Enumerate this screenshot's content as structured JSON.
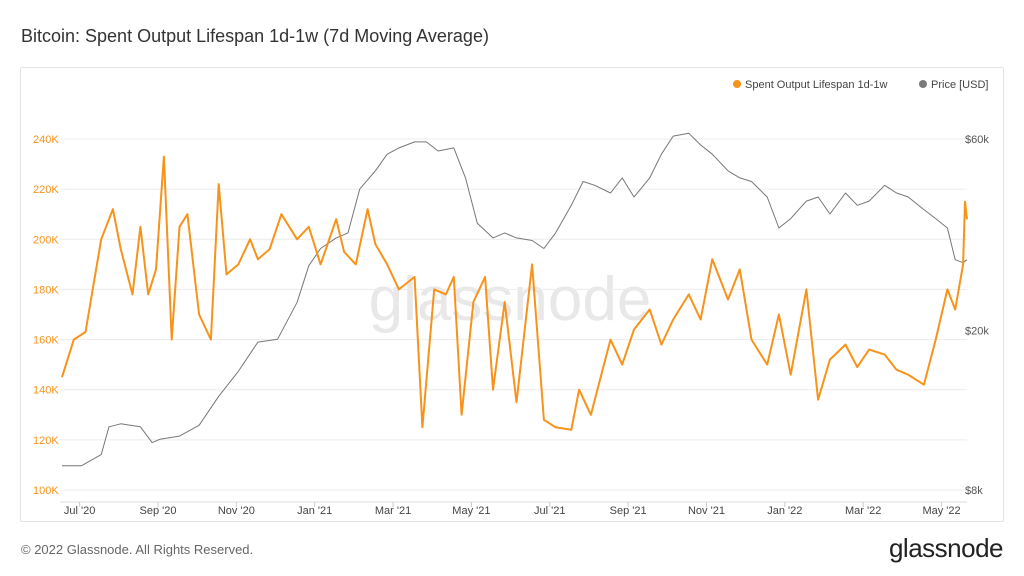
{
  "title": "Bitcoin: Spent Output Lifespan 1d-1w (7d Moving Average)",
  "footer": "© 2022 Glassnode. All Rights Reserved.",
  "brand": "glassnode",
  "watermark": "glassnode",
  "colors": {
    "spent": "#f7931a",
    "price": "#777777",
    "grid": "#ececec",
    "legend_price": "#7a7a7a"
  },
  "legend": [
    {
      "label": "Spent Output Lifespan 1d-1w",
      "color": "#f7931a"
    },
    {
      "label": "Price [USD]",
      "color": "#7a7a7a"
    }
  ],
  "chart_data": {
    "type": "line",
    "title": "Bitcoin: Spent Output Lifespan 1d-1w (7d Moving Average)",
    "x_range": [
      "2020-06-18",
      "2022-05-20"
    ],
    "x_ticks": [
      {
        "label": "Jul '20",
        "month": 0.45
      },
      {
        "label": "Sep '20",
        "month": 2.45
      },
      {
        "label": "Nov '20",
        "month": 4.45
      },
      {
        "label": "Jan '21",
        "month": 6.45
      },
      {
        "label": "Mar '21",
        "month": 8.45
      },
      {
        "label": "May '21",
        "month": 10.45
      },
      {
        "label": "Jul '21",
        "month": 12.45
      },
      {
        "label": "Sep '21",
        "month": 14.45
      },
      {
        "label": "Nov '21",
        "month": 16.45
      },
      {
        "label": "Jan '22",
        "month": 18.45
      },
      {
        "label": "Mar '22",
        "month": 20.45
      },
      {
        "label": "May '22",
        "month": 22.45
      }
    ],
    "y_left": {
      "min": 100000,
      "max": 240000,
      "ticks": [
        "100K",
        "120K",
        "140K",
        "160K",
        "180K",
        "200K",
        "220K",
        "240K"
      ],
      "tick_values": [
        100000,
        120000,
        140000,
        160000,
        180000,
        200000,
        220000,
        240000
      ]
    },
    "y_right": {
      "scale": "log",
      "min": 8000,
      "max": 60000,
      "ticks": [
        "$8k",
        "$20k",
        "$60k"
      ],
      "tick_values": [
        8000,
        20000,
        60000
      ]
    },
    "series": [
      {
        "name": "Spent Output Lifespan 1d-1w",
        "axis": "left",
        "x_month": [
          0,
          0.3,
          0.6,
          1,
          1.3,
          1.5,
          1.8,
          2,
          2.2,
          2.4,
          2.6,
          2.8,
          3,
          3.2,
          3.5,
          3.8,
          4,
          4.2,
          4.5,
          4.8,
          5,
          5.3,
          5.6,
          6,
          6.3,
          6.6,
          7,
          7.2,
          7.5,
          7.8,
          8,
          8.3,
          8.6,
          9,
          9.2,
          9.5,
          9.8,
          10,
          10.2,
          10.5,
          10.8,
          11,
          11.3,
          11.6,
          12,
          12.3,
          12.6,
          13,
          13.2,
          13.5,
          13.8,
          14,
          14.3,
          14.6,
          15,
          15.3,
          15.6,
          16,
          16.3,
          16.6,
          17,
          17.3,
          17.6,
          18,
          18.3,
          18.6,
          19,
          19.3,
          19.6,
          20,
          20.3,
          20.6,
          21,
          21.3,
          21.6,
          22,
          22.3,
          22.6,
          22.8,
          23,
          23.05,
          23.1
        ],
        "values": [
          145000,
          160000,
          163000,
          200000,
          212000,
          196000,
          178000,
          205000,
          178000,
          188000,
          233000,
          160000,
          205000,
          210000,
          170000,
          160000,
          222000,
          186000,
          190000,
          200000,
          192000,
          196000,
          210000,
          200000,
          205000,
          190000,
          208000,
          195000,
          190000,
          212000,
          198000,
          190000,
          180000,
          185000,
          125000,
          180000,
          178000,
          185000,
          130000,
          175000,
          185000,
          140000,
          175000,
          135000,
          190000,
          128000,
          125000,
          124000,
          140000,
          130000,
          148000,
          160000,
          150000,
          164000,
          172000,
          158000,
          168000,
          178000,
          168000,
          192000,
          176000,
          188000,
          160000,
          150000,
          170000,
          146000,
          180000,
          136000,
          152000,
          158000,
          149000,
          156000,
          154000,
          148000,
          146000,
          142000,
          160000,
          180000,
          172000,
          190000,
          215000,
          208000
        ]
      },
      {
        "name": "Price [USD]",
        "axis": "right",
        "x_month": [
          0,
          0.5,
          1,
          1.2,
          1.5,
          2,
          2.3,
          2.5,
          3,
          3.5,
          4,
          4.5,
          5,
          5.5,
          6,
          6.3,
          6.6,
          7,
          7.3,
          7.6,
          8,
          8.3,
          8.6,
          9,
          9.3,
          9.6,
          10,
          10.3,
          10.6,
          11,
          11.3,
          11.6,
          12,
          12.3,
          12.6,
          13,
          13.3,
          13.6,
          14,
          14.3,
          14.6,
          15,
          15.3,
          15.6,
          16,
          16.3,
          16.6,
          17,
          17.3,
          17.6,
          18,
          18.3,
          18.6,
          19,
          19.3,
          19.6,
          20,
          20.3,
          20.6,
          21,
          21.3,
          21.6,
          22,
          22.3,
          22.6,
          22.8,
          23,
          23.1
        ],
        "values": [
          9200,
          9200,
          9800,
          11500,
          11700,
          11500,
          10500,
          10700,
          10900,
          11600,
          13700,
          15800,
          18700,
          19000,
          23500,
          29000,
          32000,
          34000,
          35000,
          45000,
          50000,
          55000,
          57000,
          59000,
          59000,
          56000,
          57000,
          48000,
          37000,
          34000,
          35000,
          34000,
          33500,
          32000,
          35000,
          41000,
          47000,
          46000,
          44000,
          48000,
          43000,
          48000,
          55000,
          61000,
          62000,
          58000,
          55000,
          50000,
          48000,
          47000,
          43000,
          36000,
          38000,
          42000,
          43000,
          39000,
          44000,
          41000,
          42000,
          46000,
          44000,
          43000,
          40000,
          38000,
          36000,
          30000,
          29500,
          30000
        ]
      }
    ]
  }
}
